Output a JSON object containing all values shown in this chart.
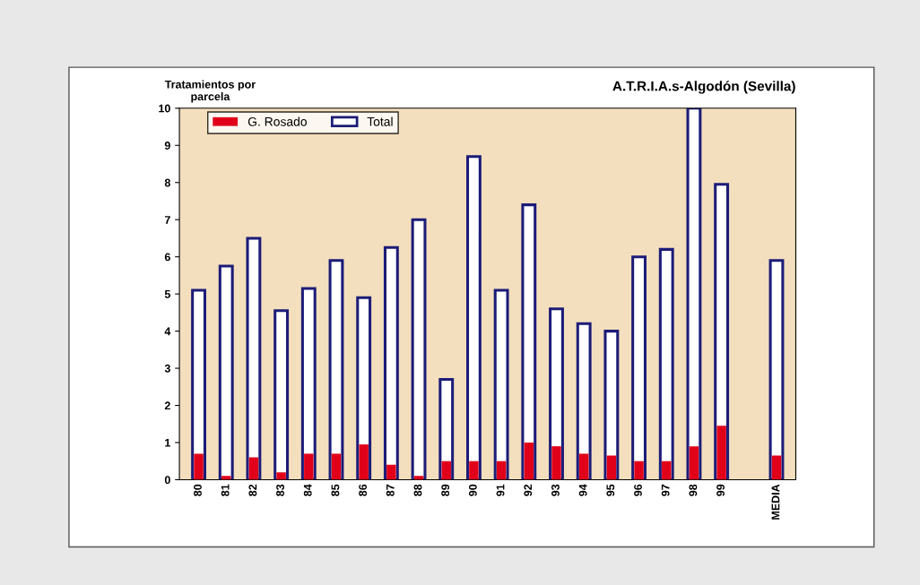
{
  "chart_data": {
    "type": "bar",
    "title": "A.T.R.I.A.s-Algodón (Sevilla)",
    "ylabel": "Tratamientos por\nparcela",
    "categories": [
      "80",
      "81",
      "82",
      "83",
      "84",
      "85",
      "86",
      "87",
      "88",
      "89",
      "90",
      "91",
      "92",
      "93",
      "94",
      "95",
      "96",
      "97",
      "98",
      "99",
      null,
      "MEDIA"
    ],
    "series": [
      {
        "name": "Total",
        "color": "#1c1c78",
        "values": [
          5.1,
          5.75,
          6.5,
          4.55,
          5.15,
          5.9,
          4.9,
          6.25,
          7.0,
          2.7,
          8.7,
          5.1,
          7.4,
          4.6,
          4.2,
          4.0,
          6.0,
          6.2,
          10.0,
          7.95,
          null,
          5.9
        ]
      },
      {
        "name": "G. Rosado",
        "color": "#e0001a",
        "values": [
          0.7,
          0.1,
          0.6,
          0.2,
          0.7,
          0.7,
          0.95,
          0.4,
          0.1,
          0.5,
          0.5,
          0.5,
          1.0,
          0.9,
          0.7,
          0.65,
          0.5,
          0.5,
          0.9,
          1.45,
          null,
          0.65
        ]
      }
    ],
    "ylim": [
      0,
      10
    ],
    "yticks": [
      0,
      1,
      2,
      3,
      4,
      5,
      6,
      7,
      8,
      9,
      10
    ],
    "grid": false,
    "legend": "top left"
  }
}
